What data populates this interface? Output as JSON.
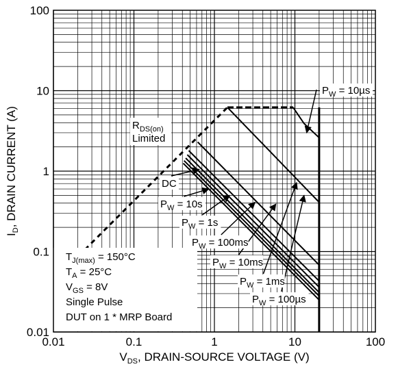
{
  "chart_data": {
    "type": "line",
    "title": "",
    "xlabel": {
      "main": "V",
      "sub": "DS",
      "rest": ", DRAIN-SOURCE VOLTAGE (V)"
    },
    "ylabel": {
      "main": "I",
      "sub": "D",
      "rest": ", DRAIN CURRENT (A)"
    },
    "x_scale": "log",
    "y_scale": "log",
    "xlim": [
      0.01,
      100
    ],
    "ylim": [
      0.01,
      100
    ],
    "grid": true,
    "x_ticks": [
      {
        "value": 0.01,
        "label": "0.01"
      },
      {
        "value": 0.1,
        "label": "0.1"
      },
      {
        "value": 1,
        "label": "1"
      },
      {
        "value": 10,
        "label": "10"
      },
      {
        "value": 100,
        "label": "100"
      }
    ],
    "y_ticks": [
      {
        "value": 0.01,
        "label": "0.01"
      },
      {
        "value": 0.1,
        "label": "0.1"
      },
      {
        "value": 1,
        "label": "1"
      },
      {
        "value": 10,
        "label": "10"
      },
      {
        "value": 100,
        "label": "100"
      }
    ],
    "rds_limit": {
      "label_main": "R",
      "label_sub": "DS(on)",
      "label_line2": "Limited",
      "x": [
        0.01,
        1.45
      ],
      "y": [
        0.043,
        6.2
      ]
    },
    "current_limit": {
      "x": [
        1.45,
        9.5
      ],
      "y": [
        6.2,
        6.2
      ]
    },
    "voltage_limit": {
      "x": 20,
      "y": [
        0.01,
        6.2
      ]
    },
    "series": [
      {
        "name": "P_W = 10µs",
        "label_main": "P",
        "label_sub": "W",
        "label_rest": " = 10µs",
        "x": [
          9.5,
          13,
          20,
          20
        ],
        "y": [
          6.2,
          3.9,
          2.6,
          0.01
        ]
      },
      {
        "name": "P_W = 100µs",
        "label_main": "P",
        "label_sub": "W",
        "label_rest": " = 100µs",
        "x": [
          1.45,
          20
        ],
        "y": [
          6.2,
          0.41
        ]
      },
      {
        "name": "P_W = 1ms",
        "label_main": "P",
        "label_sub": "W",
        "label_rest": " = 1ms",
        "x": [
          0.62,
          20
        ],
        "y": [
          2.3,
          0.068
        ]
      },
      {
        "name": "P_W = 10ms",
        "label_main": "P",
        "label_sub": "W",
        "label_rest": " = 10ms",
        "x": [
          0.48,
          20
        ],
        "y": [
          1.8,
          0.043
        ]
      },
      {
        "name": "P_W = 100ms",
        "label_main": "P",
        "label_sub": "W",
        "label_rest": " = 100ms",
        "x": [
          0.46,
          20
        ],
        "y": [
          1.6,
          0.036
        ]
      },
      {
        "name": "P_W = 1s",
        "label_main": "P",
        "label_sub": "W",
        "label_rest": " = 1s",
        "x": [
          0.44,
          20
        ],
        "y": [
          1.45,
          0.031
        ]
      },
      {
        "name": "P_W = 10s",
        "label_main": "P",
        "label_sub": "W",
        "label_rest": " = 10s",
        "x": [
          0.42,
          20
        ],
        "y": [
          1.35,
          0.028
        ]
      },
      {
        "name": "DC",
        "label_main": "DC",
        "label_sub": "",
        "label_rest": "",
        "x": [
          0.41,
          20
        ],
        "y": [
          1.25,
          0.025
        ]
      }
    ],
    "conditions": [
      {
        "main": "T",
        "sub": "J(max)",
        "rest": " = 150°C"
      },
      {
        "main": "T",
        "sub": "A",
        "rest": " = 25°C"
      },
      {
        "main": "V",
        "sub": "GS",
        "rest": " = 8V"
      },
      {
        "main": "Single Pulse",
        "sub": "",
        "rest": ""
      },
      {
        "main": "DUT on 1 * MRP Board",
        "sub": "",
        "rest": ""
      }
    ]
  }
}
